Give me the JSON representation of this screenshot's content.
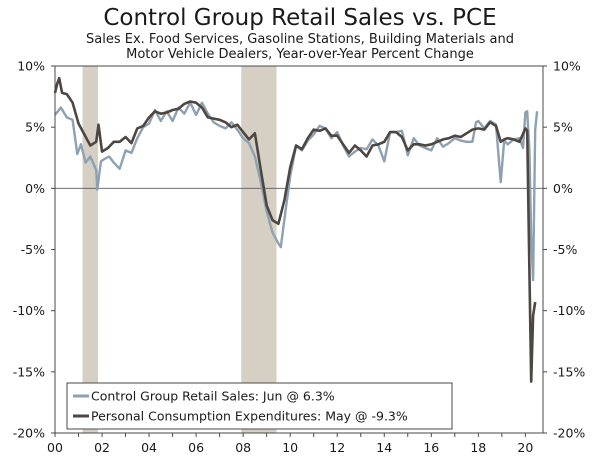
{
  "chart_data": {
    "type": "line",
    "title": "Control Group Retail Sales vs. PCE",
    "subtitle_line1": "Sales Ex. Food Services, Gasoline Stations, Building Materials and",
    "subtitle_line2": "Motor Vehicle Dealers, Year-over-Year Percent Change",
    "xlim": [
      2000.0,
      2020.75
    ],
    "ylim": [
      -20,
      10
    ],
    "y_ticks": [
      10,
      5,
      0,
      -5,
      -10,
      -15,
      -20
    ],
    "y_tick_labels_left": [
      "10%",
      "5%",
      "0%",
      "-5%",
      "-10%",
      "-15%",
      "-20%"
    ],
    "y_tick_labels_right": [
      "10%",
      "5%",
      "0%",
      "-5%",
      "-10%",
      "-15%",
      "-20%"
    ],
    "x_tick_values": [
      2000,
      2002,
      2004,
      2006,
      2008,
      2010,
      2012,
      2014,
      2016,
      2018,
      2020
    ],
    "x_tick_labels": [
      "00",
      "02",
      "04",
      "06",
      "08",
      "10",
      "12",
      "14",
      "16",
      "18",
      "20"
    ],
    "zero_line": true,
    "recessions": [
      [
        2001.17,
        2001.83
      ],
      [
        2007.92,
        2009.42
      ]
    ],
    "legend_position": "bottom-left",
    "series": [
      {
        "name": "Control Group Retail Sales: Jun @ 6.3%",
        "color": "#8ea1b2",
        "points": [
          [
            2000.0,
            6.0
          ],
          [
            2000.25,
            6.6
          ],
          [
            2000.5,
            5.8
          ],
          [
            2000.75,
            5.6
          ],
          [
            2000.95,
            2.8
          ],
          [
            2001.1,
            3.6
          ],
          [
            2001.3,
            2.1
          ],
          [
            2001.5,
            2.6
          ],
          [
            2001.75,
            1.5
          ],
          [
            2001.8,
            -0.1
          ],
          [
            2001.95,
            2.2
          ],
          [
            2002.1,
            2.4
          ],
          [
            2002.3,
            2.6
          ],
          [
            2002.5,
            2.1
          ],
          [
            2002.75,
            1.6
          ],
          [
            2003.0,
            3.1
          ],
          [
            2003.25,
            2.9
          ],
          [
            2003.5,
            4.1
          ],
          [
            2003.75,
            5.0
          ],
          [
            2004.0,
            5.3
          ],
          [
            2004.25,
            6.4
          ],
          [
            2004.5,
            5.5
          ],
          [
            2004.75,
            6.3
          ],
          [
            2005.0,
            5.5
          ],
          [
            2005.25,
            6.6
          ],
          [
            2005.5,
            6.1
          ],
          [
            2005.75,
            7.0
          ],
          [
            2006.0,
            6.0
          ],
          [
            2006.25,
            7.0
          ],
          [
            2006.5,
            6.1
          ],
          [
            2006.75,
            5.4
          ],
          [
            2007.0,
            5.1
          ],
          [
            2007.25,
            4.9
          ],
          [
            2007.5,
            5.4
          ],
          [
            2007.75,
            4.8
          ],
          [
            2008.0,
            4.1
          ],
          [
            2008.25,
            3.7
          ],
          [
            2008.5,
            2.6
          ],
          [
            2008.75,
            0.5
          ],
          [
            2009.0,
            -1.9
          ],
          [
            2009.25,
            -3.6
          ],
          [
            2009.5,
            -4.5
          ],
          [
            2009.6,
            -4.8
          ],
          [
            2009.75,
            -2.6
          ],
          [
            2010.0,
            1.0
          ],
          [
            2010.25,
            3.5
          ],
          [
            2010.5,
            3.1
          ],
          [
            2010.75,
            3.9
          ],
          [
            2011.0,
            4.4
          ],
          [
            2011.25,
            5.1
          ],
          [
            2011.5,
            4.9
          ],
          [
            2011.75,
            4.1
          ],
          [
            2012.0,
            4.6
          ],
          [
            2012.25,
            3.5
          ],
          [
            2012.5,
            2.6
          ],
          [
            2012.75,
            3.0
          ],
          [
            2013.0,
            3.3
          ],
          [
            2013.25,
            3.2
          ],
          [
            2013.5,
            4.0
          ],
          [
            2013.75,
            3.5
          ],
          [
            2014.0,
            2.2
          ],
          [
            2014.25,
            4.6
          ],
          [
            2014.5,
            4.6
          ],
          [
            2014.75,
            4.7
          ],
          [
            2015.0,
            2.7
          ],
          [
            2015.25,
            4.1
          ],
          [
            2015.5,
            3.5
          ],
          [
            2015.75,
            3.3
          ],
          [
            2016.0,
            3.1
          ],
          [
            2016.25,
            4.1
          ],
          [
            2016.5,
            3.4
          ],
          [
            2016.75,
            3.7
          ],
          [
            2017.0,
            4.1
          ],
          [
            2017.25,
            3.9
          ],
          [
            2017.5,
            3.8
          ],
          [
            2017.75,
            3.8
          ],
          [
            2017.9,
            5.4
          ],
          [
            2018.0,
            5.5
          ],
          [
            2018.25,
            4.9
          ],
          [
            2018.5,
            5.5
          ],
          [
            2018.75,
            5.2
          ],
          [
            2018.95,
            0.5
          ],
          [
            2019.1,
            3.9
          ],
          [
            2019.25,
            3.6
          ],
          [
            2019.5,
            4.0
          ],
          [
            2019.75,
            4.1
          ],
          [
            2019.9,
            3.3
          ],
          [
            2020.0,
            6.2
          ],
          [
            2020.08,
            6.3
          ],
          [
            2020.17,
            3.2
          ],
          [
            2020.25,
            -4.0
          ],
          [
            2020.33,
            -7.5
          ],
          [
            2020.42,
            4.8
          ],
          [
            2020.5,
            6.3
          ]
        ]
      },
      {
        "name": "Personal Consumption Expenditures: May @ -9.3%",
        "color": "#4d4641",
        "points": [
          [
            2000.0,
            7.8
          ],
          [
            2000.1,
            8.6
          ],
          [
            2000.18,
            9.0
          ],
          [
            2000.3,
            7.8
          ],
          [
            2000.5,
            7.7
          ],
          [
            2000.75,
            7.0
          ],
          [
            2001.0,
            5.3
          ],
          [
            2001.25,
            4.4
          ],
          [
            2001.5,
            3.5
          ],
          [
            2001.75,
            3.8
          ],
          [
            2001.85,
            5.2
          ],
          [
            2002.0,
            3.0
          ],
          [
            2002.25,
            3.3
          ],
          [
            2002.5,
            3.8
          ],
          [
            2002.75,
            3.8
          ],
          [
            2003.0,
            4.2
          ],
          [
            2003.25,
            3.7
          ],
          [
            2003.5,
            4.9
          ],
          [
            2003.75,
            5.1
          ],
          [
            2004.0,
            5.8
          ],
          [
            2004.25,
            6.3
          ],
          [
            2004.5,
            6.1
          ],
          [
            2004.75,
            6.2
          ],
          [
            2005.0,
            6.4
          ],
          [
            2005.25,
            6.5
          ],
          [
            2005.5,
            6.9
          ],
          [
            2005.75,
            7.1
          ],
          [
            2006.0,
            7.0
          ],
          [
            2006.25,
            6.6
          ],
          [
            2006.5,
            5.8
          ],
          [
            2006.75,
            5.7
          ],
          [
            2007.0,
            5.6
          ],
          [
            2007.25,
            5.4
          ],
          [
            2007.5,
            5.0
          ],
          [
            2007.75,
            5.2
          ],
          [
            2008.0,
            4.6
          ],
          [
            2008.25,
            4.0
          ],
          [
            2008.5,
            4.5
          ],
          [
            2008.75,
            1.5
          ],
          [
            2009.0,
            -1.4
          ],
          [
            2009.25,
            -2.6
          ],
          [
            2009.5,
            -2.9
          ],
          [
            2009.75,
            -1.0
          ],
          [
            2010.0,
            1.7
          ],
          [
            2010.25,
            3.5
          ],
          [
            2010.5,
            3.2
          ],
          [
            2010.75,
            4.1
          ],
          [
            2011.0,
            4.8
          ],
          [
            2011.25,
            4.7
          ],
          [
            2011.5,
            4.9
          ],
          [
            2011.75,
            4.3
          ],
          [
            2012.0,
            4.3
          ],
          [
            2012.25,
            3.6
          ],
          [
            2012.5,
            2.9
          ],
          [
            2012.75,
            3.5
          ],
          [
            2013.0,
            3.1
          ],
          [
            2013.25,
            2.6
          ],
          [
            2013.5,
            3.5
          ],
          [
            2013.75,
            3.6
          ],
          [
            2014.0,
            3.8
          ],
          [
            2014.25,
            4.6
          ],
          [
            2014.5,
            4.6
          ],
          [
            2014.75,
            4.2
          ],
          [
            2015.0,
            3.1
          ],
          [
            2015.25,
            3.6
          ],
          [
            2015.5,
            3.6
          ],
          [
            2015.75,
            3.5
          ],
          [
            2016.0,
            3.6
          ],
          [
            2016.25,
            3.8
          ],
          [
            2016.5,
            4.0
          ],
          [
            2016.75,
            4.1
          ],
          [
            2017.0,
            4.3
          ],
          [
            2017.25,
            4.2
          ],
          [
            2017.5,
            4.5
          ],
          [
            2017.75,
            4.8
          ],
          [
            2018.0,
            4.9
          ],
          [
            2018.25,
            4.8
          ],
          [
            2018.5,
            5.4
          ],
          [
            2018.75,
            5.1
          ],
          [
            2018.95,
            3.8
          ],
          [
            2019.1,
            4.0
          ],
          [
            2019.25,
            4.1
          ],
          [
            2019.5,
            4.0
          ],
          [
            2019.75,
            3.8
          ],
          [
            2020.0,
            4.9
          ],
          [
            2020.08,
            4.7
          ],
          [
            2020.17,
            -6.7
          ],
          [
            2020.25,
            -15.8
          ],
          [
            2020.33,
            -10.4
          ],
          [
            2020.42,
            -9.3
          ]
        ]
      }
    ]
  }
}
